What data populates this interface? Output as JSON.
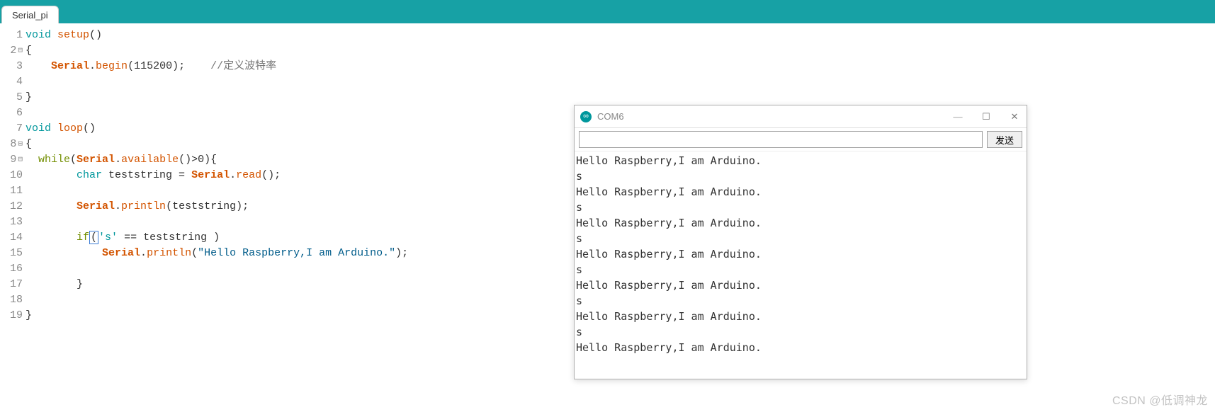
{
  "colors": {
    "top_bar": "#17a1a5",
    "tab_bg": "#ffffff",
    "gutter_text": "#888888",
    "code_text": "#333333",
    "type_kw": "#00979c",
    "class_kw": "#d35400",
    "func_kw": "#d35400",
    "ctrl_kw": "#728e00",
    "string": "#005c8a",
    "comment": "#777777",
    "cursor_border": "#3a7bd5",
    "window_border": "#b0b0b0",
    "title_text": "#888888",
    "scrollbar_thumb": "#c0c0c0"
  },
  "typography": {
    "code_font": "Consolas",
    "code_fontsize": 15,
    "code_lineheight": 22,
    "tab_font": "Arial",
    "tab_fontsize": 13,
    "title_font": "Segoe UI",
    "title_fontsize": 13
  },
  "tab": {
    "label": "Serial_pi"
  },
  "gutter": {
    "fold_lines": [
      2,
      8,
      9
    ],
    "count": 19
  },
  "code": {
    "line1": {
      "kw": "void",
      "fn": "setup",
      "tail": "()"
    },
    "line2": "{",
    "line3": {
      "indent": "    ",
      "cls": "Serial",
      "dot": ".",
      "fn": "begin",
      "args": "(115200);",
      "gap": "    ",
      "cmt": "//定义波特率"
    },
    "line4": "",
    "line5": "}",
    "line6": "",
    "line7": {
      "kw": "void",
      "fn": "loop",
      "tail": "()"
    },
    "line8": "{",
    "line9": {
      "pre": "  ",
      "ctrl": "while",
      "open": "(",
      "cls": "Serial",
      "dot": ".",
      "fn": "available",
      "tail": "()>0){"
    },
    "line10": {
      "indent": "        ",
      "type": "char",
      "mid": " teststring = ",
      "cls": "Serial",
      "dot": ".",
      "fn": "read",
      "tail": "();"
    },
    "line11": "",
    "line12": {
      "indent": "        ",
      "cls": "Serial",
      "dot": ".",
      "fn": "println",
      "tail": "(teststring);"
    },
    "line13": "",
    "line14": {
      "indent": "        ",
      "ctrl": "if",
      "box": "(",
      "ch": "'s'",
      "tail": " == teststring )"
    },
    "line15": {
      "indent": "            ",
      "cls": "Serial",
      "dot": ".",
      "fn": "println",
      "open": "(",
      "str": "\"Hello Raspberry,I am Arduino.\"",
      "close": ");"
    },
    "line16": "",
    "line17": "        }",
    "line18": "",
    "line19": "}"
  },
  "serial": {
    "title": "COM6",
    "send_label": "发送",
    "scrollbar_pos": "top",
    "lines": [
      "Hello Raspberry,I am Arduino.",
      "s",
      "Hello Raspberry,I am Arduino.",
      "s",
      "Hello Raspberry,I am Arduino.",
      "s",
      "Hello Raspberry,I am Arduino.",
      "s",
      "Hello Raspberry,I am Arduino.",
      "s",
      "Hello Raspberry,I am Arduino.",
      "s",
      "Hello Raspberry,I am Arduino."
    ]
  },
  "watermark": "CSDN @低调神龙"
}
